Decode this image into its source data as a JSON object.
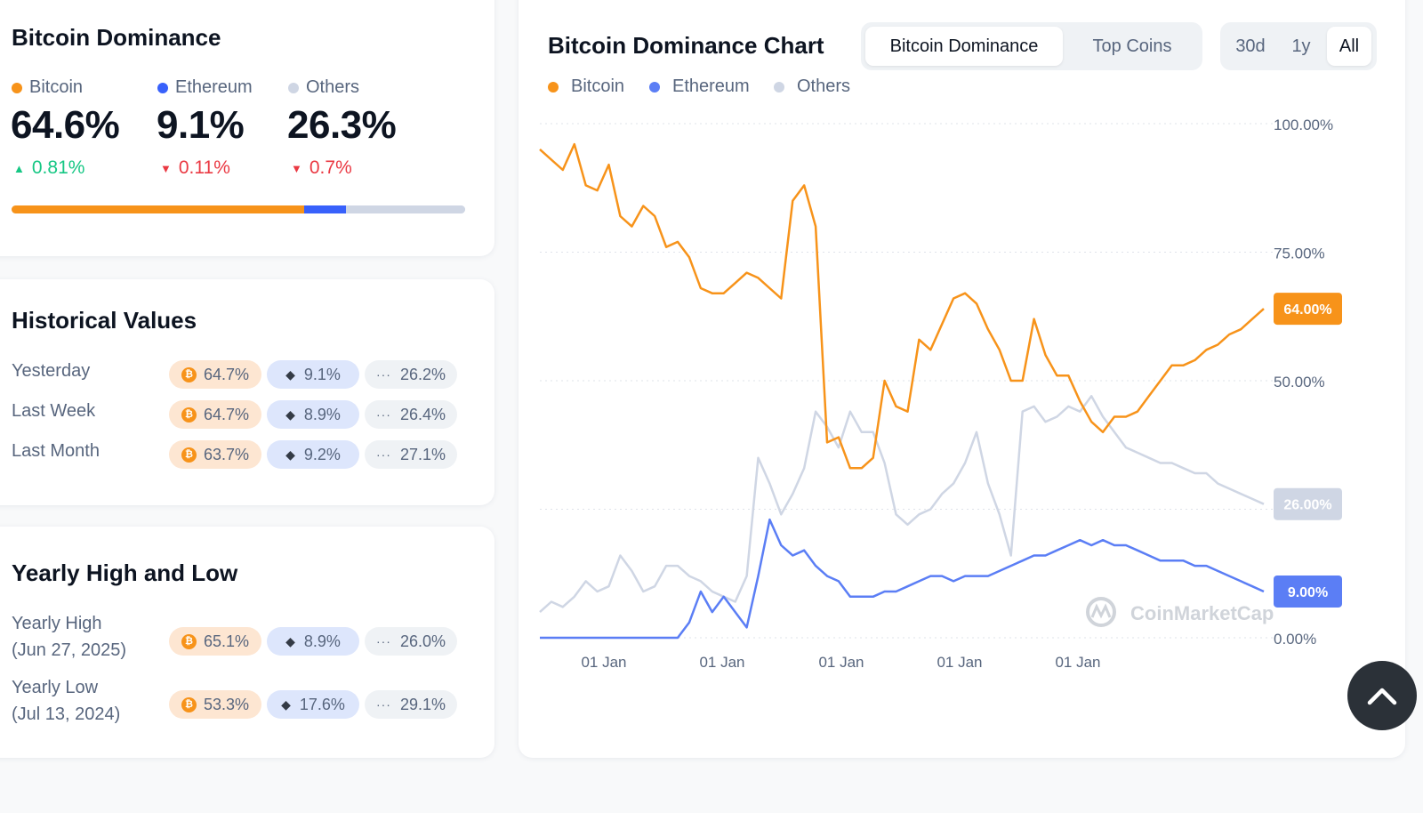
{
  "dominance": {
    "title": "Bitcoin Dominance",
    "items": [
      {
        "name": "Bitcoin",
        "value": "64.6%",
        "change": "0.81%",
        "direction": "up",
        "color": "#f7931a"
      },
      {
        "name": "Ethereum",
        "value": "9.1%",
        "change": "0.11%",
        "direction": "down",
        "color": "#3861fb"
      },
      {
        "name": "Others",
        "value": "26.3%",
        "change": "0.7%",
        "direction": "down",
        "color": "#cfd6e4"
      }
    ],
    "bar": [
      64.6,
      9.1,
      26.3
    ]
  },
  "history": {
    "title": "Historical Values",
    "rows": [
      {
        "label": "Yesterday",
        "btc": "64.7%",
        "eth": "9.1%",
        "others": "26.2%"
      },
      {
        "label": "Last Week",
        "btc": "64.7%",
        "eth": "8.9%",
        "others": "26.4%"
      },
      {
        "label": "Last Month",
        "btc": "63.7%",
        "eth": "9.2%",
        "others": "27.1%"
      }
    ]
  },
  "yearly": {
    "title": "Yearly High and Low",
    "rows": [
      {
        "label": "Yearly High",
        "date": "(Jun 27, 2025)",
        "btc": "65.1%",
        "eth": "8.9%",
        "others": "26.0%"
      },
      {
        "label": "Yearly Low",
        "date": "(Jul 13, 2024)",
        "btc": "53.3%",
        "eth": "17.6%",
        "others": "29.1%"
      }
    ]
  },
  "chart_panel": {
    "title": "Bitcoin Dominance Chart",
    "tabs": [
      {
        "label": "Bitcoin Dominance",
        "active": true
      },
      {
        "label": "Top Coins",
        "active": false
      }
    ],
    "ranges": [
      {
        "label": "30d",
        "active": false
      },
      {
        "label": "1y",
        "active": false
      },
      {
        "label": "All",
        "active": true
      }
    ],
    "watermark": "CoinMarketCap"
  },
  "chart_data": {
    "type": "line",
    "title": "Bitcoin Dominance Chart",
    "x_ticks": [
      "01 Jan",
      "01 Jan",
      "01 Jan",
      "01 Jan",
      "01 Jan"
    ],
    "y_ticks": [
      "100.00%",
      "75.00%",
      "50.00%",
      "25.00%",
      "0.00%"
    ],
    "ylim": [
      0,
      100
    ],
    "grid": true,
    "legend_position": "top-left",
    "series": [
      {
        "name": "Bitcoin",
        "color": "#f7931a",
        "last_label": "64.00%",
        "values": [
          95,
          93,
          91,
          96,
          88,
          87,
          92,
          82,
          80,
          84,
          82,
          76,
          77,
          74,
          68,
          67,
          67,
          69,
          71,
          70,
          68,
          66,
          85,
          88,
          80,
          38,
          39,
          33,
          33,
          35,
          50,
          45,
          44,
          58,
          56,
          61,
          66,
          67,
          65,
          60,
          56,
          50,
          50,
          62,
          55,
          51,
          51,
          46,
          42,
          40,
          43,
          43,
          44,
          47,
          50,
          53,
          53,
          54,
          56,
          57,
          59,
          60,
          62,
          64
        ]
      },
      {
        "name": "Ethereum",
        "color": "#3861fb",
        "last_label": "9.00%",
        "values": [
          0,
          0,
          0,
          0,
          0,
          0,
          0,
          0,
          0,
          0,
          0,
          0,
          0,
          3,
          9,
          5,
          8,
          5,
          2,
          12,
          23,
          18,
          16,
          17,
          14,
          12,
          11,
          8,
          8,
          8,
          9,
          9,
          10,
          11,
          12,
          12,
          11,
          12,
          12,
          12,
          13,
          14,
          15,
          16,
          16,
          17,
          18,
          19,
          18,
          19,
          18,
          18,
          17,
          16,
          15,
          15,
          15,
          14,
          14,
          13,
          12,
          11,
          10,
          9
        ]
      },
      {
        "name": "Others",
        "color": "#cfd6e4",
        "last_label": "26.00%",
        "values": [
          5,
          7,
          6,
          8,
          11,
          9,
          10,
          16,
          13,
          9,
          10,
          14,
          14,
          12,
          11,
          9,
          8,
          7,
          12,
          35,
          30,
          24,
          28,
          33,
          44,
          41,
          37,
          44,
          40,
          40,
          34,
          24,
          22,
          24,
          25,
          28,
          30,
          34,
          40,
          30,
          24,
          16,
          44,
          45,
          42,
          43,
          45,
          44,
          47,
          43,
          40,
          37,
          36,
          35,
          34,
          34,
          33,
          32,
          32,
          30,
          29,
          28,
          27,
          26
        ]
      }
    ]
  }
}
